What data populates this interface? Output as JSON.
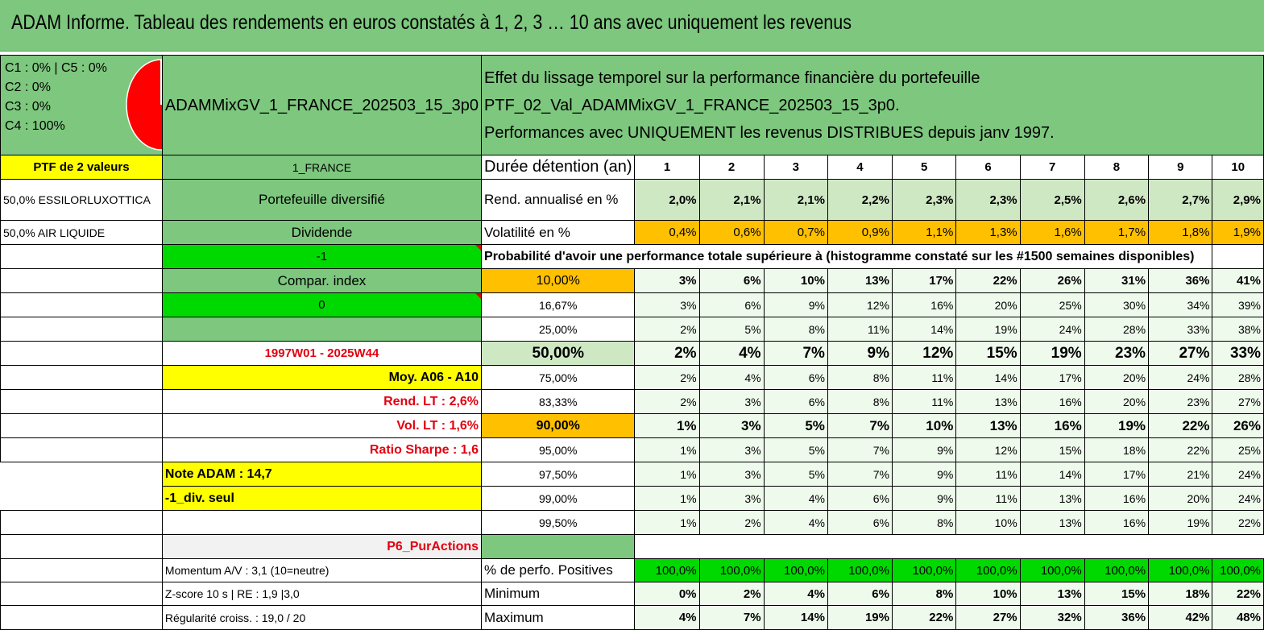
{
  "title": "ADAM Informe. Tableau des rendements en euros constatés à 1, 2, 3 … 10 ans avec uniquement les revenus",
  "legend": [
    "C1 : 0% | C5 : 0%",
    "C2 : 0%",
    "C3 : 0%",
    "C4 : 100%"
  ],
  "pie": {
    "color": "#ff0000",
    "c4_share_percent": 100
  },
  "portfolio_name": "ADAMMixGV_1_FRANCE_202503_15_3p0",
  "description_line1": "Effet du lissage temporel sur la performance financière du portefeuille PTF_02_Val_ADAMMixGV_1_FRANCE_202503_15_3p0.",
  "description_line2": "Performances avec UNIQUEMENT les revenus DISTRIBUES depuis janv 1997.",
  "ptf_label": "PTF de 2 valeurs",
  "holdings": [
    "50,0% ESSILORLUXOTTICA",
    "50,0% AIR LIQUIDE"
  ],
  "side": {
    "market": "1_FRANCE",
    "type": "Portefeuille diversifié",
    "dividend": "Dividende",
    "minus_one": "-1",
    "compar": "Compar. index",
    "zero": "0",
    "period": "1997W01 - 2025W44",
    "moy": "Moy. A06 - A10",
    "rend_lt": "Rend. LT : 2,6%",
    "vol_lt": "Vol. LT : 1,6%",
    "sharpe": "Ratio Sharpe : 1,6",
    "note": "Note ADAM : 14,7",
    "div_seul": "-1_div. seul",
    "p6": "P6_PurActions",
    "momentum": "Momentum A/V : 3,1 (10=neutre)",
    "zscore": "Z-score 10 s | RE : 1,9 |3,0",
    "regularite": "Régularité croiss. : 19,0 / 20"
  },
  "duration_label": "Durée détention (an)",
  "years": [
    "1",
    "2",
    "3",
    "4",
    "5",
    "6",
    "7",
    "8",
    "9",
    "10"
  ],
  "rend_label": "Rend. annualisé en %",
  "rend_values": [
    "2,0%",
    "2,1%",
    "2,1%",
    "2,2%",
    "2,3%",
    "2,3%",
    "2,5%",
    "2,6%",
    "2,7%",
    "2,9%"
  ],
  "vol_label": "Volatilité en %",
  "vol_values": [
    "0,4%",
    "0,6%",
    "0,7%",
    "0,9%",
    "1,1%",
    "1,3%",
    "1,6%",
    "1,7%",
    "1,8%",
    "1,9%"
  ],
  "prob_label": "Probabilité d'avoir une performance totale supérieure à (histogramme constaté sur les #1500 semaines disponibles)",
  "prob_rows": [
    {
      "p": "10,00%",
      "v": [
        "3%",
        "6%",
        "10%",
        "13%",
        "17%",
        "22%",
        "26%",
        "31%",
        "36%",
        "41%"
      ]
    },
    {
      "p": "16,67%",
      "v": [
        "3%",
        "6%",
        "9%",
        "12%",
        "16%",
        "20%",
        "25%",
        "30%",
        "34%",
        "39%"
      ]
    },
    {
      "p": "25,00%",
      "v": [
        "2%",
        "5%",
        "8%",
        "11%",
        "14%",
        "19%",
        "24%",
        "28%",
        "33%",
        "38%"
      ]
    },
    {
      "p": "50,00%",
      "v": [
        "2%",
        "4%",
        "7%",
        "9%",
        "12%",
        "15%",
        "19%",
        "23%",
        "27%",
        "33%"
      ]
    },
    {
      "p": "75,00%",
      "v": [
        "2%",
        "4%",
        "6%",
        "8%",
        "11%",
        "14%",
        "17%",
        "20%",
        "24%",
        "28%"
      ]
    },
    {
      "p": "83,33%",
      "v": [
        "2%",
        "3%",
        "6%",
        "8%",
        "11%",
        "13%",
        "16%",
        "20%",
        "23%",
        "27%"
      ]
    },
    {
      "p": "90,00%",
      "v": [
        "1%",
        "3%",
        "5%",
        "7%",
        "10%",
        "13%",
        "16%",
        "19%",
        "22%",
        "26%"
      ]
    },
    {
      "p": "95,00%",
      "v": [
        "1%",
        "3%",
        "5%",
        "7%",
        "9%",
        "12%",
        "15%",
        "18%",
        "22%",
        "25%"
      ]
    },
    {
      "p": "97,50%",
      "v": [
        "1%",
        "3%",
        "5%",
        "7%",
        "9%",
        "11%",
        "14%",
        "17%",
        "21%",
        "24%"
      ]
    },
    {
      "p": "99,00%",
      "v": [
        "1%",
        "3%",
        "4%",
        "6%",
        "9%",
        "11%",
        "13%",
        "16%",
        "20%",
        "24%"
      ]
    },
    {
      "p": "99,50%",
      "v": [
        "1%",
        "2%",
        "4%",
        "6%",
        "8%",
        "10%",
        "13%",
        "16%",
        "19%",
        "22%"
      ]
    }
  ],
  "pos_label": "% de perfo. Positives",
  "pos_values": [
    "100,0%",
    "100,0%",
    "100,0%",
    "100,0%",
    "100,0%",
    "100,0%",
    "100,0%",
    "100,0%",
    "100,0%",
    "100,0%"
  ],
  "min_label": "Minimum",
  "min_values": [
    "0%",
    "2%",
    "4%",
    "6%",
    "8%",
    "10%",
    "13%",
    "15%",
    "18%",
    "22%"
  ],
  "max_label": "Maximum",
  "max_values": [
    "4%",
    "7%",
    "14%",
    "19%",
    "22%",
    "27%",
    "32%",
    "36%",
    "42%",
    "48%"
  ]
}
